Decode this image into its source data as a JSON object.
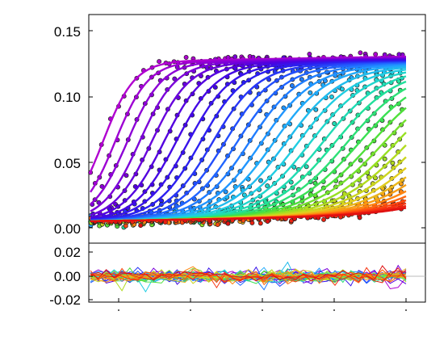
{
  "chart_data": [
    {
      "type": "scatter",
      "panel": "main",
      "description_visible": "kinetic traces: scattered dots with fitted sigmoidal lines, colored by series (violet to red)",
      "x_range": [
        0,
        1
      ],
      "ylim": [
        -0.005,
        0.16
      ],
      "y_ticks": [
        "0.00",
        "0.05",
        "0.10",
        "0.15"
      ],
      "series_count": 36,
      "series_colors": [
        "#b000d0",
        "#8000d8",
        "#4c00e0",
        "#2a20f0",
        "#2060ff",
        "#20a0ff",
        "#20d0e0",
        "#20e0a0",
        "#40e040",
        "#a0e020",
        "#e0d020",
        "#ff9010",
        "#ff4010",
        "#e01010"
      ],
      "plateau_y": 0.12,
      "baseline_y": 0.005,
      "grid": false,
      "legend": "none"
    },
    {
      "type": "line",
      "panel": "residuals",
      "ylim": [
        -0.025,
        0.025
      ],
      "y_ticks": [
        "0.02",
        "0.00",
        "-0.02"
      ],
      "zero_line": 0,
      "grid": false,
      "legend": "none"
    }
  ],
  "axes": {
    "main_y_ticks": [
      "0.15",
      "0.10",
      "0.05",
      "0.00"
    ],
    "resid_y_ticks": [
      "0.02",
      "0.00",
      "-0.02"
    ]
  }
}
